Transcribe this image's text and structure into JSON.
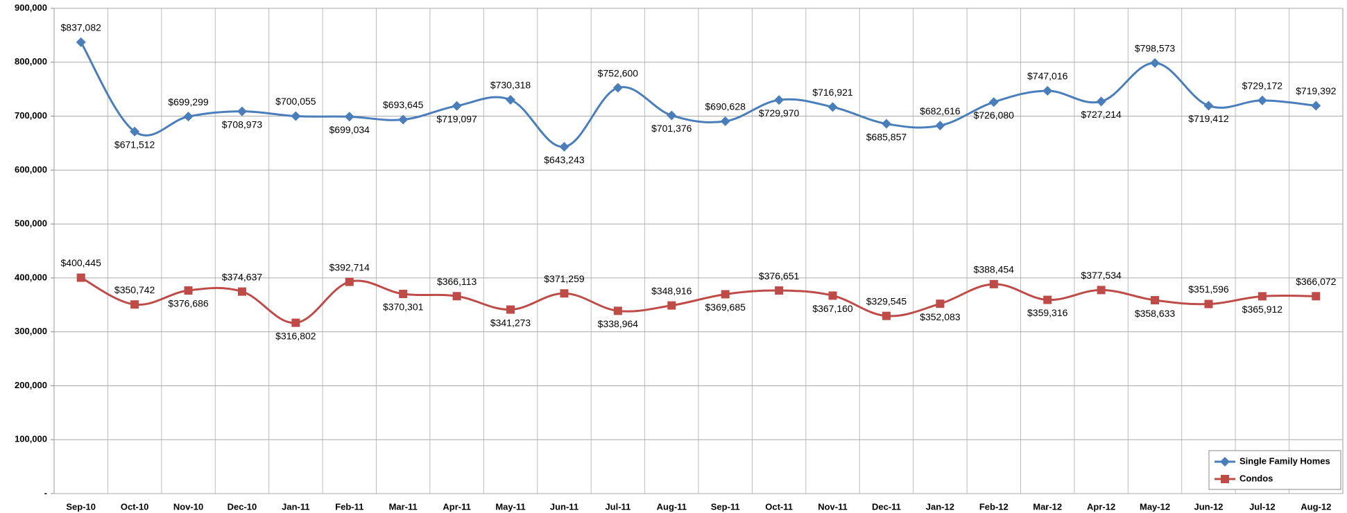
{
  "chart_data": {
    "type": "line",
    "categories": [
      "Sep-10",
      "Oct-10",
      "Nov-10",
      "Dec-10",
      "Jan-11",
      "Feb-11",
      "Mar-11",
      "Apr-11",
      "May-11",
      "Jun-11",
      "Jul-11",
      "Aug-11",
      "Sep-11",
      "Oct-11",
      "Nov-11",
      "Dec-11",
      "Jan-12",
      "Feb-12",
      "Mar-12",
      "Apr-12",
      "May-12",
      "Jun-12",
      "Jul-12",
      "Aug-12"
    ],
    "ylim": [
      0,
      900000
    ],
    "yticks": [
      {
        "value": 0,
        "label": "-"
      },
      {
        "value": 100000,
        "label": "100,000"
      },
      {
        "value": 200000,
        "label": "200,000"
      },
      {
        "value": 300000,
        "label": "300,000"
      },
      {
        "value": 400000,
        "label": "400,000"
      },
      {
        "value": 500000,
        "label": "500,000"
      },
      {
        "value": 600000,
        "label": "600,000"
      },
      {
        "value": 700000,
        "label": "700,000"
      },
      {
        "value": 800000,
        "label": "800,000"
      },
      {
        "value": 900000,
        "label": "900,000"
      }
    ],
    "grid": true,
    "legend": "lower right",
    "series": [
      {
        "name": "Single Family Homes",
        "color": "#4a7ebb",
        "marker": "diamond",
        "values": [
          837082,
          671512,
          699299,
          708973,
          700055,
          699034,
          693645,
          719097,
          730318,
          643243,
          752600,
          701376,
          690628,
          729970,
          716921,
          685857,
          682616,
          726080,
          747016,
          727214,
          798573,
          719412,
          729172,
          719392
        ],
        "value_labels": [
          "$837,082",
          "$671,512",
          "$699,299",
          "$708,973",
          "$700,055",
          "$699,034",
          "$693,645",
          "$719,097",
          "$730,318",
          "$643,243",
          "$752,600",
          "$701,376",
          "$690,628",
          "$729,970",
          "$716,921",
          "$685,857",
          "$682,616",
          "$726,080",
          "$747,016",
          "$727,214",
          "$798,573",
          "$719,412",
          "$729,172",
          "$719,392"
        ]
      },
      {
        "name": "Condos",
        "color": "#be4b48",
        "marker": "square",
        "values": [
          400445,
          350742,
          376686,
          374637,
          316802,
          392714,
          370301,
          366113,
          341273,
          371259,
          338964,
          348916,
          369685,
          376651,
          367160,
          329545,
          352083,
          388454,
          359316,
          377534,
          358633,
          351596,
          365912,
          366072
        ],
        "value_labels": [
          "$400,445",
          "$350,742",
          "$376,686",
          "$374,637",
          "$316,802",
          "$392,714",
          "$370,301",
          "$366,113",
          "$341,273",
          "$371,259",
          "$338,964",
          "$348,916",
          "$369,685",
          "$376,651",
          "$367,160",
          "$329,545",
          "$352,083",
          "$388,454",
          "$359,316",
          "$377,534",
          "$358,633",
          "$351,596",
          "$365,912",
          "$366,072"
        ]
      }
    ]
  }
}
